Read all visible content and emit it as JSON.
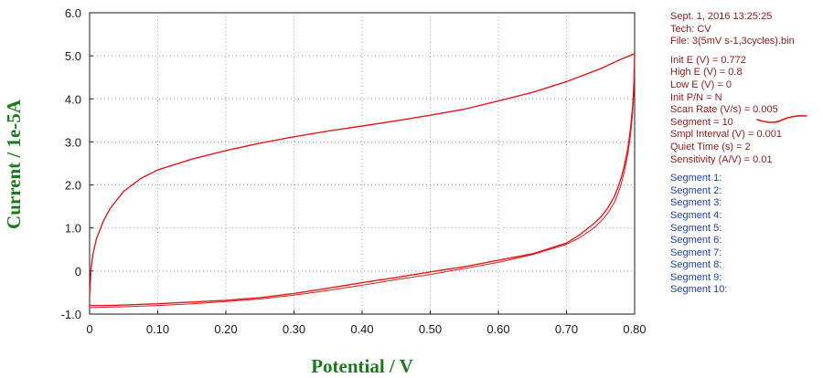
{
  "chart_data": {
    "type": "line",
    "xlabel": "Potential / V",
    "ylabel": "Current / 1e-5A",
    "xlim": [
      0,
      0.8
    ],
    "ylim": [
      -1.0,
      6.0
    ],
    "x_ticks": [
      "0",
      "0.10",
      "0.20",
      "0.30",
      "0.40",
      "0.50",
      "0.60",
      "0.70",
      "0.80"
    ],
    "y_ticks": [
      "-1.0",
      "0",
      "1.0",
      "2.0",
      "3.0",
      "4.0",
      "5.0",
      "6.0"
    ],
    "grid": true,
    "line_color": "#e01a1a",
    "series": [
      {
        "x": [
          0.0,
          0.002,
          0.005,
          0.01,
          0.02,
          0.03,
          0.05,
          0.075,
          0.1,
          0.15,
          0.2,
          0.25,
          0.3,
          0.35,
          0.4,
          0.45,
          0.5,
          0.55,
          0.6,
          0.65,
          0.7,
          0.75,
          0.78,
          0.8
        ],
        "y": [
          -0.6,
          0.05,
          0.4,
          0.75,
          1.15,
          1.45,
          1.85,
          2.15,
          2.35,
          2.6,
          2.8,
          2.97,
          3.12,
          3.25,
          3.37,
          3.49,
          3.62,
          3.76,
          3.95,
          4.15,
          4.4,
          4.7,
          4.92,
          5.05
        ]
      },
      {
        "x": [
          0.8,
          0.799,
          0.797,
          0.794,
          0.79,
          0.785,
          0.78,
          0.775,
          0.77,
          0.76,
          0.75,
          0.74,
          0.72,
          0.7,
          0.65,
          0.6,
          0.55,
          0.5,
          0.45,
          0.4,
          0.35,
          0.3,
          0.25,
          0.2,
          0.15,
          0.1,
          0.05,
          0.02,
          0.0
        ],
        "y": [
          5.05,
          4.4,
          3.8,
          3.3,
          2.85,
          2.45,
          2.15,
          1.92,
          1.72,
          1.45,
          1.25,
          1.1,
          0.85,
          0.65,
          0.4,
          0.25,
          0.1,
          -0.02,
          -0.15,
          -0.27,
          -0.4,
          -0.52,
          -0.62,
          -0.68,
          -0.72,
          -0.76,
          -0.79,
          -0.8,
          -0.8
        ]
      },
      {
        "x": [
          0.0,
          0.05,
          0.1,
          0.15,
          0.2,
          0.25,
          0.3,
          0.35,
          0.4,
          0.45,
          0.5,
          0.55,
          0.6,
          0.65,
          0.7,
          0.72,
          0.74,
          0.75,
          0.76,
          0.77,
          0.775,
          0.78,
          0.785,
          0.79,
          0.794,
          0.797,
          0.799,
          0.8
        ],
        "y": [
          -0.85,
          -0.83,
          -0.8,
          -0.76,
          -0.71,
          -0.65,
          -0.56,
          -0.45,
          -0.33,
          -0.2,
          -0.08,
          0.06,
          0.2,
          0.38,
          0.62,
          0.78,
          1.0,
          1.15,
          1.33,
          1.58,
          1.78,
          2.0,
          2.32,
          2.72,
          3.15,
          3.65,
          4.2,
          4.9
        ]
      }
    ]
  },
  "info": {
    "date": "Sept. 1, 2016    13:25:25",
    "tech": "Tech: CV",
    "file": "File: 3(5mV s-1,3cycles).bin",
    "params": [
      "Init E (V) = 0.772",
      "High E (V) = 0.8",
      "Low E (V) = 0",
      "Init P/N = N",
      "Scan Rate (V/s) = 0.005",
      "Segment = 10",
      "Smpl Interval (V) = 0.001",
      "Quiet Time (s) = 2",
      "Sensitivity (A/V) = 0.01"
    ],
    "segments": [
      "Segment 1:",
      "Segment 2:",
      "Segment 3:",
      "Segment 4:",
      "Segment 5:",
      "Segment 6:",
      "Segment 7:",
      "Segment 8:",
      "Segment 9:",
      "Segment 10:"
    ]
  }
}
